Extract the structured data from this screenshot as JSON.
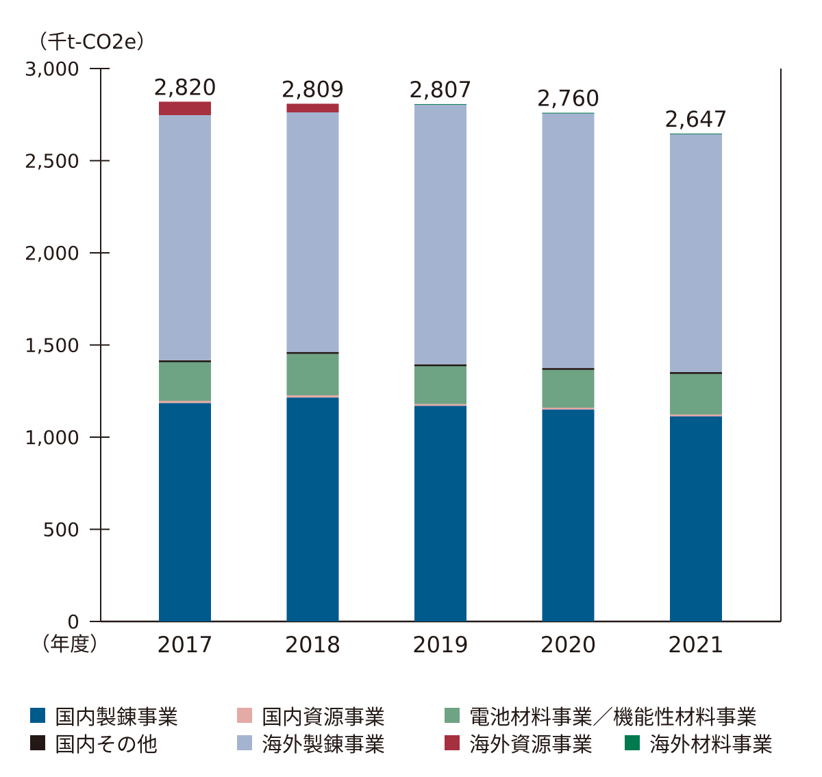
{
  "chart_data": {
    "type": "bar",
    "stacked": true,
    "ylabel": "（千t-CO2e）",
    "xlabel": "（年度）",
    "ylim": [
      0,
      3000
    ],
    "yticks": [
      0,
      500,
      1000,
      1500,
      2000,
      2500,
      3000
    ],
    "ytick_labels": [
      "0",
      "500",
      "1,000",
      "1,500",
      "2,000",
      "2,500",
      "3,000"
    ],
    "categories": [
      "2017",
      "2018",
      "2019",
      "2020",
      "2021"
    ],
    "totals": [
      2820,
      2809,
      2807,
      2760,
      2647
    ],
    "total_labels": [
      "2,820",
      "2,809",
      "2,807",
      "2,760",
      "2,647"
    ],
    "series": [
      {
        "name": "国内製錬事業",
        "color": "#005a8c",
        "values": [
          1185,
          1215,
          1170,
          1150,
          1113
        ]
      },
      {
        "name": "国内資源事業",
        "color": "#e3aaa6",
        "values": [
          12,
          12,
          10,
          10,
          10
        ]
      },
      {
        "name": "電池材料事業／機能性材料事業",
        "color": "#6ea384",
        "values": [
          210,
          225,
          205,
          205,
          220
        ]
      },
      {
        "name": "国内その他",
        "color": "#231815",
        "values": [
          10,
          10,
          10,
          10,
          10
        ]
      },
      {
        "name": "海外製錬事業",
        "color": "#a4b4d0",
        "values": [
          1330,
          1300,
          1410,
          1383,
          1292
        ]
      },
      {
        "name": "海外資源事業",
        "color": "#a6303f",
        "values": [
          73,
          47,
          0,
          0,
          0
        ]
      },
      {
        "name": "海外材料事業",
        "color": "#007a4e",
        "values": [
          0,
          0,
          2,
          2,
          2
        ]
      }
    ],
    "legend": "bottom",
    "grid": false
  }
}
